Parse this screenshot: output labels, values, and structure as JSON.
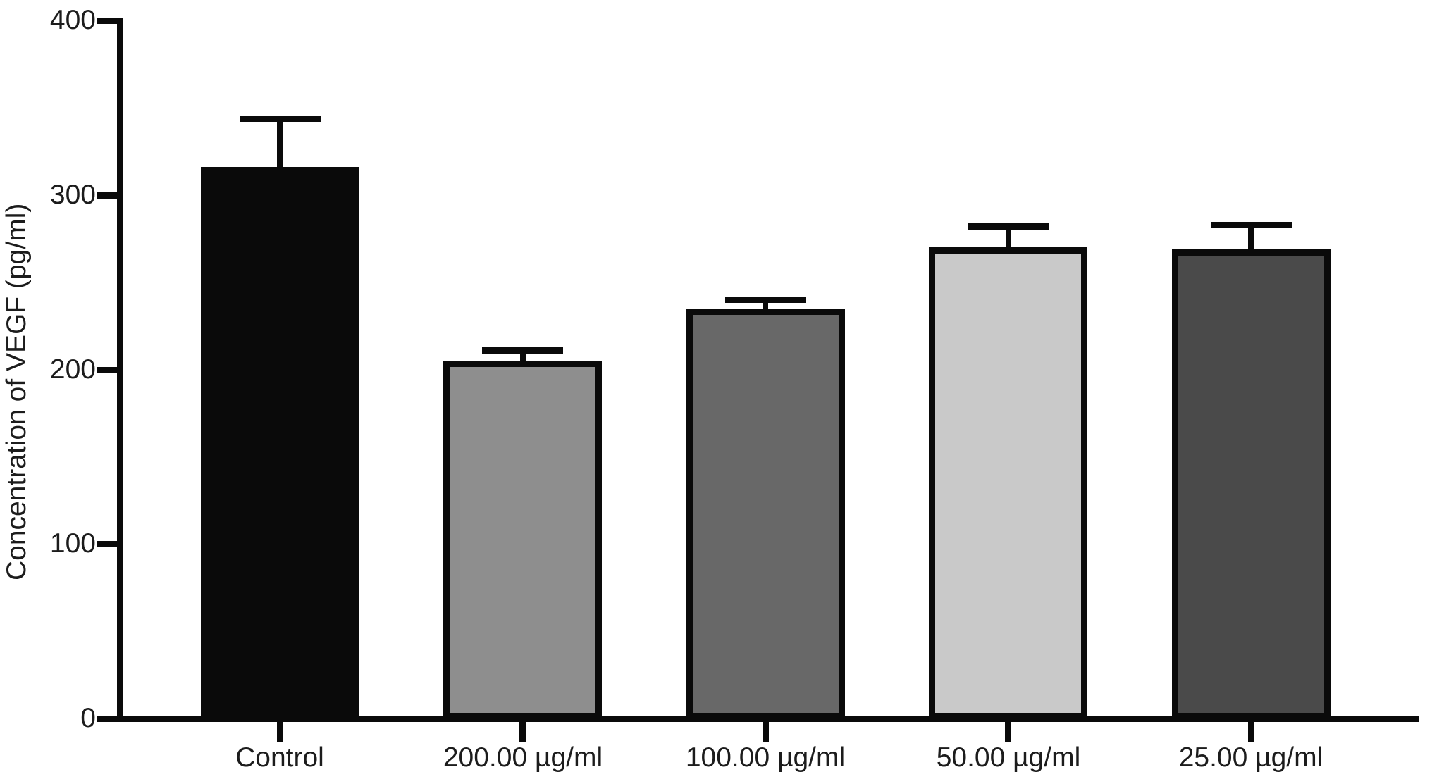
{
  "chart_data": {
    "type": "bar",
    "title": "",
    "xlabel": "",
    "ylabel": "Concentration of VEGF (pg/ml)",
    "categories": [
      "Control",
      "200.00 µg/ml",
      "100.00 µg/ml",
      "50.00 µg/ml",
      "25.00 µg/ml"
    ],
    "series": [
      {
        "name": "Concentration of VEGF (pg/ml)",
        "values": [
          316,
          205,
          235,
          270,
          269
        ],
        "errors_upper": [
          28,
          6,
          5,
          12,
          14
        ]
      }
    ],
    "bar_colors": [
      "#0a0a0a",
      "#8e8e8e",
      "#686868",
      "#c9c9c9",
      "#4a4a4a"
    ],
    "bar_border_color": "#0a0a0a",
    "axis_color": "#0a0a0a",
    "text_color": "#1c1c1c",
    "ylim": [
      0,
      400
    ],
    "yticks": [
      0,
      100,
      200,
      300,
      400
    ],
    "grid": false,
    "legend_position": "none",
    "error_bar_style": "upper T-cap"
  }
}
